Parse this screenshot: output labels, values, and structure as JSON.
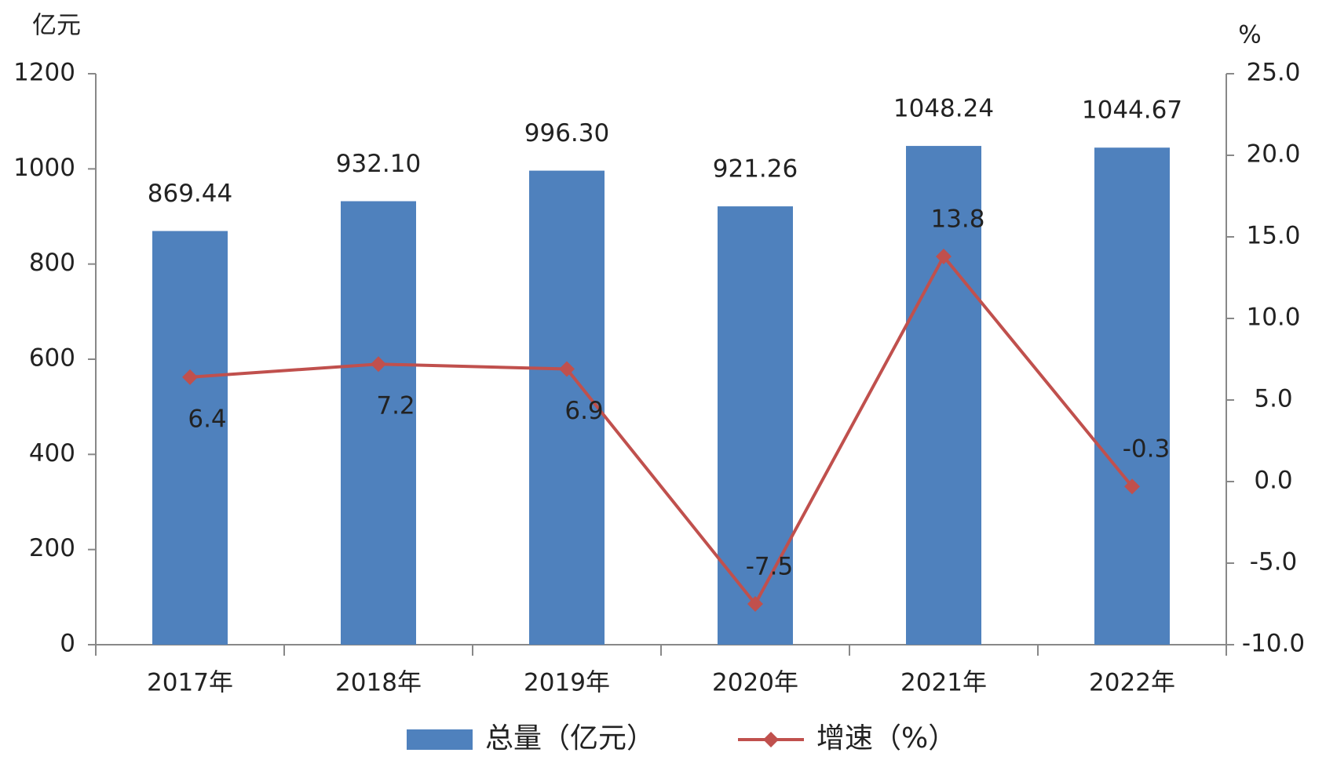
{
  "chart_data": {
    "type": "bar",
    "y_axis_title": "亿元",
    "y2_axis_title": "%",
    "categories": [
      "2017年",
      "2018年",
      "2019年",
      "2020年",
      "2021年",
      "2022年"
    ],
    "series": [
      {
        "name": "总量（亿元）",
        "type": "bar",
        "color": "#4f81bd",
        "values": [
          869.44,
          932.1,
          996.3,
          921.26,
          1048.24,
          1044.67
        ],
        "value_labels": [
          "869.44",
          "932.10",
          "996.30",
          "921.26",
          "1048.24",
          "1044.67"
        ]
      },
      {
        "name": "增速（%）",
        "type": "line",
        "axis": "y2",
        "color": "#c0504d",
        "values": [
          6.4,
          7.2,
          6.9,
          -7.5,
          13.8,
          -0.3
        ]
      }
    ],
    "ylim": [
      0,
      1200
    ],
    "yticks": [
      0,
      200,
      400,
      600,
      800,
      1000,
      1200
    ],
    "y2lim": [
      -10,
      25
    ],
    "y2ticks": [
      {
        "value": -10,
        "label": "-10.0"
      },
      {
        "value": -5,
        "label": "-5.0"
      },
      {
        "value": 0,
        "label": "0.0"
      },
      {
        "value": 5,
        "label": "5.0"
      },
      {
        "value": 10,
        "label": "10.0"
      },
      {
        "value": 15,
        "label": "15.0"
      },
      {
        "value": 20,
        "label": "20.0"
      },
      {
        "value": 25,
        "label": "25.0"
      }
    ],
    "grid": false,
    "legend": "bottom"
  }
}
